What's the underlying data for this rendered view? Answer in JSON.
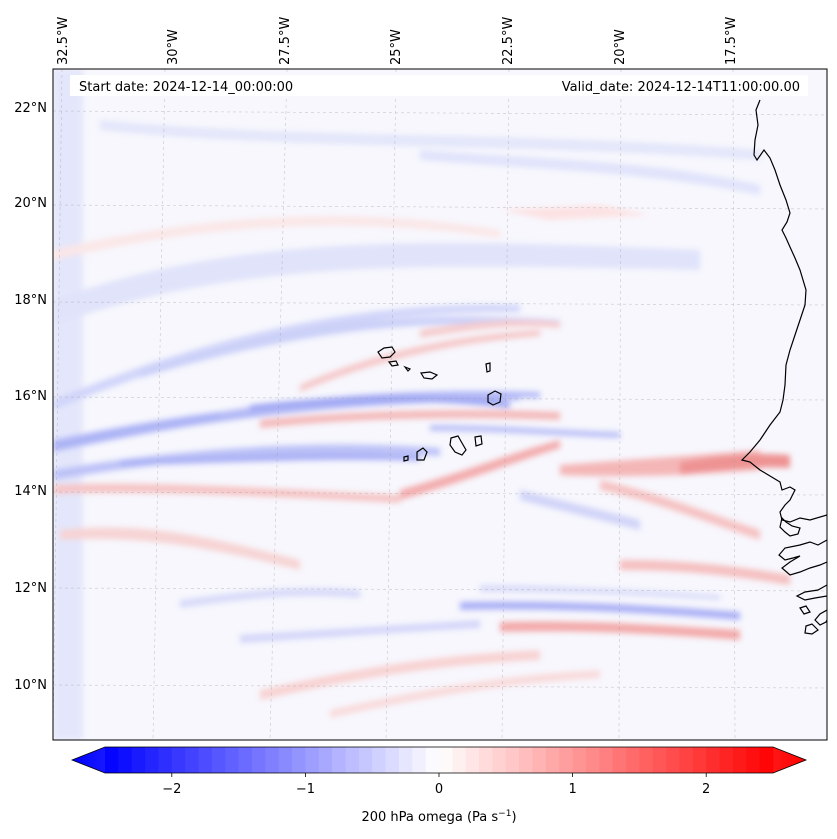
{
  "map": {
    "start_label": "Start date: 2024-12-14_00:00:00",
    "valid_label": "Valid_date: 2024-12-14T11:00:00.00",
    "lon_labels": [
      "32.5°W",
      "30°W",
      "27.5°W",
      "25°W",
      "22.5°W",
      "20°W",
      "17.5°W"
    ],
    "lat_labels": [
      "22°N",
      "20°N",
      "18°N",
      "16°N",
      "14°N",
      "12°N",
      "10°N"
    ],
    "features": [
      "Cabo Verde islands",
      "West African coastline"
    ]
  },
  "colorbar": {
    "label_prefix": "200 hPa omega (Pa s",
    "label_exp": "−1",
    "label_suffix": ")",
    "ticks": [
      "−2",
      "−1",
      "0",
      "1",
      "2"
    ],
    "tick_values": [
      -2,
      -1,
      0,
      1,
      2
    ],
    "range": [
      -2.75,
      2.75
    ],
    "colormap": "bwr",
    "neg_color": "#0000ff",
    "mid_color": "#ffffff",
    "pos_color": "#ff0000"
  }
}
